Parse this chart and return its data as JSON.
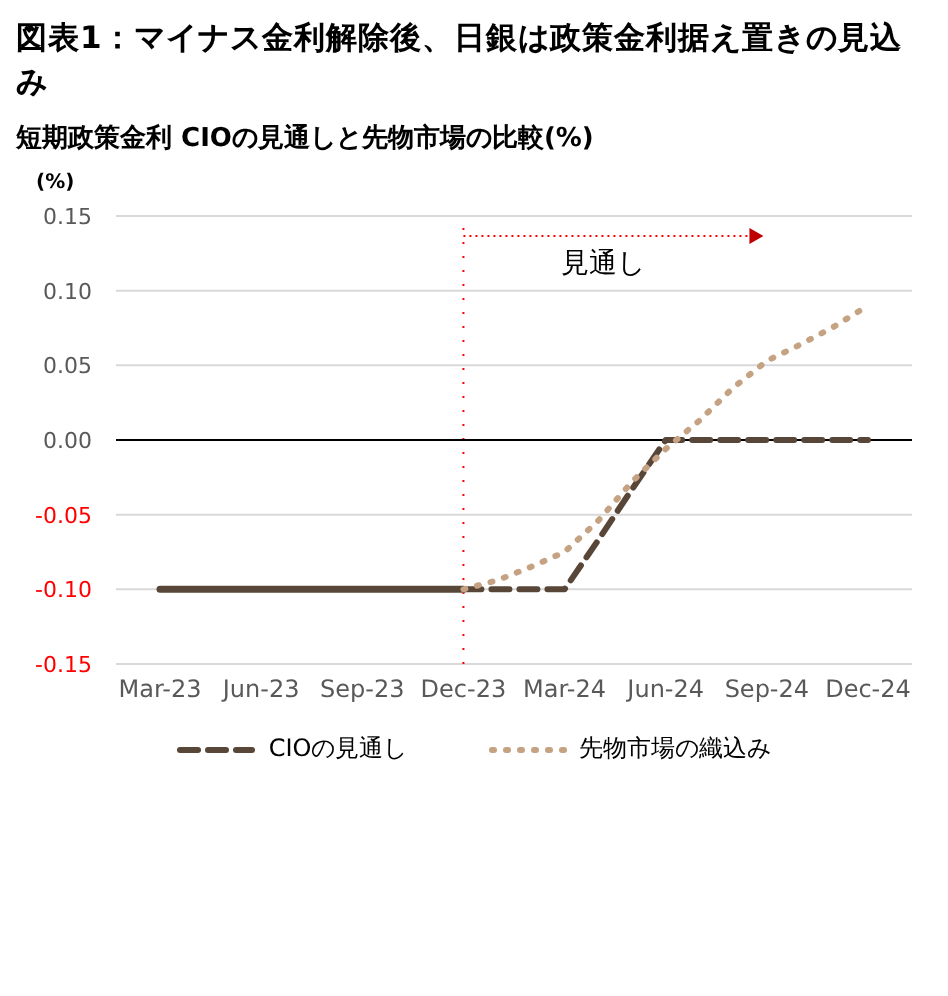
{
  "chart_data": {
    "type": "line",
    "title": "図表1：マイナス金利解除後、日銀は政策金利据え置きの見込み",
    "subtitle": "短期政策金利  CIOの見通しと先物市場の比較(%)",
    "ylabel": "(%)",
    "categories": [
      "Mar-23",
      null,
      null,
      "Jun-23",
      null,
      null,
      "Sep-23",
      null,
      null,
      "Dec-23",
      null,
      null,
      "Mar-24",
      null,
      null,
      "Jun-24",
      null,
      null,
      "Sep-24",
      null,
      null,
      "Dec-24"
    ],
    "series": [
      {
        "color": "#584738",
        "line_style": "solid",
        "values": [
          -0.1,
          -0.1,
          -0.1,
          -0.1,
          -0.1,
          -0.1,
          -0.1,
          -0.1,
          -0.1,
          -0.1,
          null,
          null,
          null,
          null,
          null,
          null,
          null,
          null,
          null,
          null,
          null,
          null
        ]
      },
      {
        "name": "CIOの見通し",
        "color": "#584738",
        "line_style": "dashed",
        "values": [
          null,
          null,
          null,
          null,
          null,
          null,
          null,
          null,
          null,
          -0.1,
          -0.1,
          -0.1,
          -0.1,
          -0.067,
          -0.033,
          0,
          0,
          0,
          0,
          0,
          0,
          0
        ]
      },
      {
        "name": "先物市場の織込み",
        "color": "#c4a282",
        "line_style": "dotted",
        "values": [
          null,
          null,
          null,
          null,
          null,
          null,
          null,
          null,
          null,
          -0.1,
          -0.094,
          -0.085,
          -0.075,
          -0.054,
          -0.028,
          -0.006,
          0.013,
          0.035,
          0.053,
          0.064,
          0.076,
          0.09
        ]
      }
    ],
    "ylim": [
      -0.15,
      0.15
    ],
    "yticks": [
      {
        "value": -0.15,
        "label": "-0.15"
      },
      {
        "value": -0.1,
        "label": "-0.10"
      },
      {
        "value": -0.05,
        "label": "-0.05"
      },
      {
        "value": 0,
        "label": "0.00"
      },
      {
        "value": 0.05,
        "label": "0.05"
      },
      {
        "value": 0.1,
        "label": "0.10"
      },
      {
        "value": 0.15,
        "label": "0.15"
      }
    ],
    "ref_lines": [
      {
        "axis": "x",
        "value": "Dec-23",
        "color": "#ff0000",
        "line_style": "dotted"
      },
      {
        "axis": "y",
        "value": 0,
        "color": "#000000",
        "line_style": "solid"
      }
    ],
    "annotations": [
      "見通し"
    ],
    "grid": "y",
    "legend": "bottom",
    "marker": "none"
  }
}
